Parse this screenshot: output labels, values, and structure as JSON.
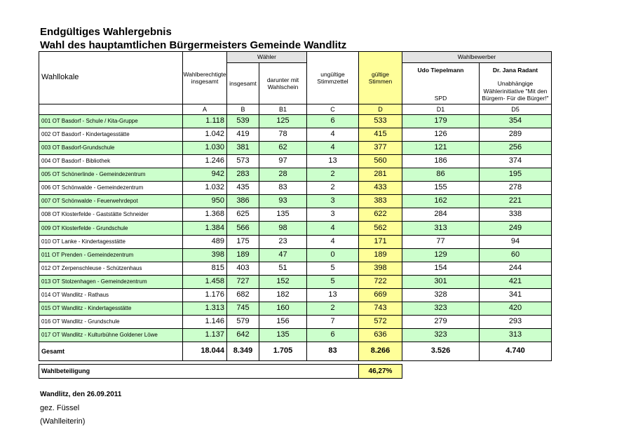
{
  "header": {
    "title": "Endgültiges Wahlergebnis",
    "subtitle": "Wahl des hauptamtlichen Bürgermeisters Gemeinde Wandlitz"
  },
  "table": {
    "group_headers": [
      "Wähler",
      "Wahlbewerber"
    ],
    "column_headers": [
      "Wahllokale",
      "Wahlberechtigte insgesamt",
      "insgesamt",
      "darunter mit Wahlschein",
      "ungültige Stimmzettel",
      "gültige Stimmen"
    ],
    "candidates": [
      {
        "name": "Udo Tiepelmann",
        "party": "SPD"
      },
      {
        "name": "Dr. Jana Radant",
        "party": "Unabhängige Wählerinitiative \"Mit den Bürgern- Für die Bürger!\""
      }
    ],
    "codes": [
      "A",
      "B",
      "B1",
      "C",
      "D",
      "D1",
      "D5"
    ],
    "rows": [
      [
        "001 OT Basdorf - Schule / Kita-Gruppe",
        "1.118",
        "539",
        "125",
        "6",
        "533",
        "179",
        "354"
      ],
      [
        "002 OT Basdorf - Kindertagesstätte",
        "1.042",
        "419",
        "78",
        "4",
        "415",
        "126",
        "289"
      ],
      [
        "003 OT Basdorf-Grundschule",
        "1.030",
        "381",
        "62",
        "4",
        "377",
        "121",
        "256"
      ],
      [
        "004 OT Basdorf - Bibliothek",
        "1.246",
        "573",
        "97",
        "13",
        "560",
        "186",
        "374"
      ],
      [
        "005 OT Schönerlinde - Gemeindezentrum",
        "942",
        "283",
        "28",
        "2",
        "281",
        "86",
        "195"
      ],
      [
        "006 OT Schönwalde - Gemeindezentrum",
        "1.032",
        "435",
        "83",
        "2",
        "433",
        "155",
        "278"
      ],
      [
        "007 OT Schönwalde - Feuerwehrdepot",
        "950",
        "386",
        "93",
        "3",
        "383",
        "162",
        "221"
      ],
      [
        "008 OT Klosterfelde - Gaststätte Schneider",
        "1.368",
        "625",
        "135",
        "3",
        "622",
        "284",
        "338"
      ],
      [
        "009 OT Klosterfelde - Grundschule",
        "1.384",
        "566",
        "98",
        "4",
        "562",
        "313",
        "249"
      ],
      [
        "010 OT Lanke - Kindertagesstätte",
        "489",
        "175",
        "23",
        "4",
        "171",
        "77",
        "94"
      ],
      [
        "011 OT Prenden - Gemeindezentrum",
        "398",
        "189",
        "47",
        "0",
        "189",
        "129",
        "60"
      ],
      [
        "012 OT Zerpenschleuse - Schützenhaus",
        "815",
        "403",
        "51",
        "5",
        "398",
        "154",
        "244"
      ],
      [
        "013 OT Stolzenhagen - Gemeindezentrum",
        "1.458",
        "727",
        "152",
        "5",
        "722",
        "301",
        "421"
      ],
      [
        "014 OT Wandlitz - Rathaus",
        "1.176",
        "682",
        "182",
        "13",
        "669",
        "328",
        "341"
      ],
      [
        "015 OT Wandlitz - Kindertagesstätte",
        "1.313",
        "745",
        "160",
        "2",
        "743",
        "323",
        "420"
      ],
      [
        "016 OT Wandlitz - Grundschule",
        "1.146",
        "579",
        "156",
        "7",
        "572",
        "279",
        "293"
      ],
      [
        "017 OT Wandlitz - Kulturbühne Goldener Löwe",
        "1.137",
        "642",
        "135",
        "6",
        "636",
        "323",
        "313"
      ]
    ],
    "total": [
      "Gesamt",
      "18.044",
      "8.349",
      "1.705",
      "83",
      "8.266",
      "3.526",
      "4.740"
    ]
  },
  "turnout": {
    "label": "Wahlbeteiligung",
    "value": "46,27%"
  },
  "footer": {
    "place_date": "Wandlitz, den 26.09.2011",
    "signature": "gez. Füssel",
    "role": "(Wahlleiterin)"
  }
}
